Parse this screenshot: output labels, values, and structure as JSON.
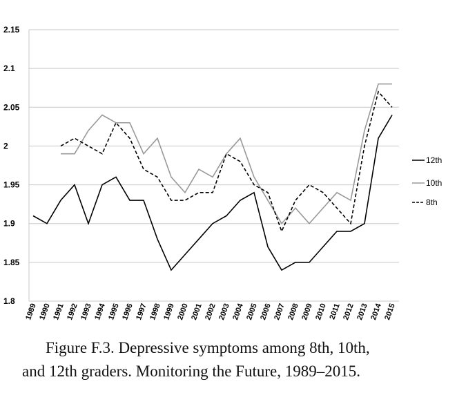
{
  "chart_data": {
    "type": "line",
    "title": "",
    "xlabel": "",
    "ylabel": "",
    "ylim": [
      1.8,
      2.15
    ],
    "yticks": [
      "1.8",
      "1.85",
      "1.9",
      "1.95",
      "2",
      "2.05",
      "2.1",
      "2.15"
    ],
    "grid": true,
    "legend_position": "right",
    "categories": [
      "1989",
      "1990",
      "1991",
      "1992",
      "1993",
      "1994",
      "1995",
      "1996",
      "1997",
      "1998",
      "1999",
      "2000",
      "2001",
      "2002",
      "2003",
      "2004",
      "2005",
      "2006",
      "2007",
      "2008",
      "2009",
      "2010",
      "2011",
      "2012",
      "2013",
      "2014",
      "2015"
    ],
    "series": [
      {
        "name": "12th",
        "color": "#000000",
        "dash": "solid",
        "values": [
          1.91,
          1.9,
          1.93,
          1.95,
          1.9,
          1.95,
          1.96,
          1.93,
          1.93,
          1.88,
          1.84,
          1.86,
          1.88,
          1.9,
          1.91,
          1.93,
          1.94,
          1.87,
          1.84,
          1.85,
          1.85,
          1.87,
          1.89,
          1.89,
          1.9,
          2.01,
          2.04
        ]
      },
      {
        "name": "10th",
        "color": "#999999",
        "dash": "solid",
        "values": [
          null,
          null,
          1.99,
          1.99,
          2.02,
          2.04,
          2.03,
          2.03,
          1.99,
          2.01,
          1.96,
          1.94,
          1.97,
          1.96,
          1.99,
          2.01,
          1.96,
          1.93,
          1.9,
          1.92,
          1.9,
          1.92,
          1.94,
          1.93,
          2.02,
          2.08,
          2.08
        ]
      },
      {
        "name": "8th",
        "color": "#000000",
        "dash": "dashed",
        "values": [
          null,
          null,
          2.0,
          2.01,
          2.0,
          1.99,
          2.03,
          2.01,
          1.97,
          1.96,
          1.93,
          1.93,
          1.94,
          1.94,
          1.99,
          1.98,
          1.95,
          1.94,
          1.89,
          1.93,
          1.95,
          1.94,
          1.92,
          1.9,
          2.0,
          2.07,
          2.05
        ]
      }
    ]
  },
  "caption": {
    "line1": "Figure F.3. Depressive symptoms among 8th, 10th,",
    "line2": "and 12th graders. Monitoring the Future, 1989–2015."
  }
}
